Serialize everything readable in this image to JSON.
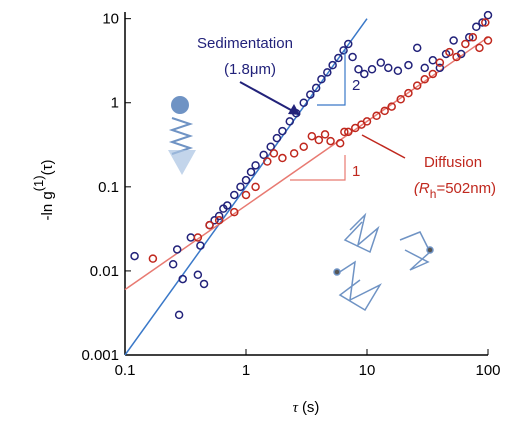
{
  "chart_data": {
    "type": "scatter",
    "log_x": true,
    "log_y": true,
    "xlabel": {
      "symbol": "τ",
      "unit": "(s)"
    },
    "ylabel": {
      "main": "-ln g",
      "sup": "(1)",
      "tail": "(τ)"
    },
    "xlim": [
      0.1,
      100
    ],
    "ylim": [
      0.001,
      12
    ],
    "xticks": [
      0.1,
      1,
      10,
      100
    ],
    "yticks": [
      0.001,
      0.01,
      0.1,
      1,
      10
    ],
    "series": [
      {
        "name": "Sedimentation",
        "color": "#22227a",
        "x": [
          0.12,
          0.25,
          0.27,
          0.3,
          0.28,
          0.4,
          0.45,
          0.42,
          0.35,
          0.5,
          0.55,
          0.6,
          0.65,
          0.7,
          0.8,
          0.9,
          1.0,
          1.1,
          1.2,
          1.4,
          1.6,
          1.8,
          2.0,
          2.3,
          2.6,
          3.0,
          3.4,
          3.8,
          4.2,
          4.7,
          5.2,
          5.8,
          6.4,
          7.0,
          7.6,
          8.5,
          9.5,
          11,
          13,
          15,
          18,
          22,
          26,
          30,
          35,
          40,
          45,
          52,
          60,
          70,
          80,
          90,
          100
        ],
        "values": [
          0.015,
          0.012,
          0.018,
          0.008,
          0.003,
          0.009,
          0.007,
          0.02,
          0.025,
          0.035,
          0.04,
          0.045,
          0.055,
          0.06,
          0.08,
          0.1,
          0.12,
          0.15,
          0.18,
          0.24,
          0.3,
          0.38,
          0.46,
          0.6,
          0.75,
          1.0,
          1.25,
          1.5,
          1.9,
          2.3,
          2.8,
          3.4,
          4.2,
          5.0,
          3.5,
          2.5,
          2.2,
          2.5,
          3.0,
          2.6,
          2.4,
          2.8,
          4.5,
          2.6,
          3.2,
          2.6,
          3.8,
          5.5,
          3.8,
          6.0,
          8.0,
          9.0,
          11.0
        ]
      },
      {
        "name": "Diffusion",
        "color": "#c0281e",
        "x": [
          0.17,
          0.4,
          0.5,
          0.6,
          0.8,
          1.0,
          1.2,
          1.5,
          1.7,
          2.0,
          2.5,
          3.0,
          3.5,
          4.0,
          4.5,
          5.0,
          6.0,
          6.5,
          7.0,
          8.0,
          9.0,
          10,
          12,
          14,
          16,
          19,
          22,
          26,
          30,
          35,
          40,
          48,
          55,
          65,
          75,
          85,
          95,
          100
        ],
        "values": [
          0.014,
          0.025,
          0.035,
          0.04,
          0.05,
          0.08,
          0.1,
          0.2,
          0.25,
          0.22,
          0.25,
          0.3,
          0.4,
          0.36,
          0.42,
          0.35,
          0.33,
          0.45,
          0.45,
          0.5,
          0.55,
          0.6,
          0.7,
          0.8,
          0.9,
          1.1,
          1.3,
          1.6,
          1.9,
          2.2,
          3.0,
          4.0,
          3.5,
          5.0,
          6.0,
          4.5,
          9.0,
          5.5
        ]
      }
    ],
    "fits": [
      {
        "color": "#3a78c8",
        "x": [
          0.1,
          10
        ],
        "values": [
          0.001,
          10
        ]
      },
      {
        "color": "#e87a72",
        "x": [
          0.1,
          100
        ],
        "values": [
          0.006,
          6
        ]
      }
    ],
    "annotations": [
      "Sedimentation",
      "(1.8μm)",
      "Diffusion",
      "2",
      "1"
    ],
    "rh_label": {
      "open": "(R",
      "sub": "h",
      "close": "=502nm)"
    }
  }
}
